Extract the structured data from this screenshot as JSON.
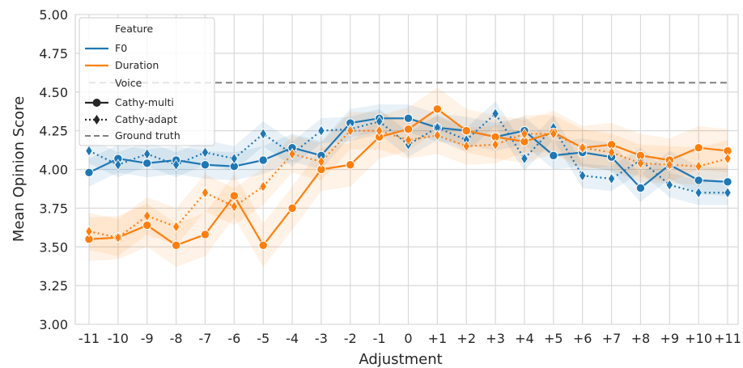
{
  "chart_data": {
    "type": "line",
    "xlabel": "Adjustment",
    "ylabel": "Mean Opinion Score",
    "ylim": [
      3.0,
      5.0
    ],
    "yticks": [
      "3.00",
      "3.25",
      "3.50",
      "3.75",
      "4.00",
      "4.25",
      "4.50",
      "4.75",
      "5.00"
    ],
    "categories": [
      "-11",
      "-10",
      "-9",
      "-8",
      "-7",
      "-6",
      "-5",
      "-4",
      "-3",
      "-2",
      "-1",
      "0",
      "+1",
      "+2",
      "+3",
      "+4",
      "+5",
      "+6",
      "+7",
      "+8",
      "+9",
      "+10",
      "+11"
    ],
    "grid": true,
    "legend_position": "top-left",
    "colors": {
      "F0": "#1f77b4",
      "Duration": "#ff7f0e",
      "ground_truth": "#808080"
    },
    "legend": {
      "feature_title": "Feature",
      "f0": "F0",
      "duration": "Duration",
      "voice_title": "Voice",
      "multi": "Cathy-multi",
      "adapt": "Cathy-adapt",
      "ground_truth": "Ground truth"
    },
    "ground_truth": 4.56,
    "series": [
      {
        "key": "f0_multi",
        "name": "F0 / Cathy-multi",
        "feature": "F0",
        "voice": "Cathy-multi",
        "values": [
          3.98,
          4.07,
          4.04,
          4.06,
          4.03,
          4.02,
          4.06,
          4.14,
          4.09,
          4.3,
          4.33,
          4.33,
          4.27,
          4.25,
          4.21,
          4.25,
          4.09,
          4.11,
          4.08,
          3.88,
          4.03,
          3.93,
          3.92
        ],
        "ci": 0.09
      },
      {
        "key": "f0_adapt",
        "name": "F0 / Cathy-adapt",
        "feature": "F0",
        "voice": "Cathy-adapt",
        "values": [
          4.12,
          4.03,
          4.1,
          4.03,
          4.11,
          4.07,
          4.23,
          4.1,
          4.25,
          4.26,
          4.31,
          4.16,
          4.27,
          4.19,
          4.36,
          4.07,
          4.27,
          3.96,
          3.94,
          4.06,
          3.9,
          3.85,
          3.85
        ],
        "ci": 0.08
      },
      {
        "key": "dur_multi",
        "name": "Duration / Cathy-multi",
        "feature": "Duration",
        "voice": "Cathy-multi",
        "values": [
          3.55,
          3.56,
          3.64,
          3.51,
          3.58,
          3.83,
          3.51,
          3.75,
          4.0,
          4.03,
          4.21,
          4.26,
          4.39,
          4.25,
          4.21,
          4.18,
          4.24,
          4.14,
          4.16,
          4.09,
          4.06,
          4.14,
          4.12
        ],
        "ci": 0.14
      },
      {
        "key": "dur_adapt",
        "name": "Duration / Cathy-adapt",
        "feature": "Duration",
        "voice": "Cathy-adapt",
        "values": [
          3.6,
          3.56,
          3.7,
          3.63,
          3.85,
          3.76,
          3.89,
          4.1,
          4.05,
          4.25,
          4.25,
          4.19,
          4.22,
          4.15,
          4.16,
          4.23,
          4.23,
          4.14,
          4.11,
          4.04,
          4.03,
          4.02,
          4.07
        ],
        "ci": 0.12
      }
    ]
  }
}
